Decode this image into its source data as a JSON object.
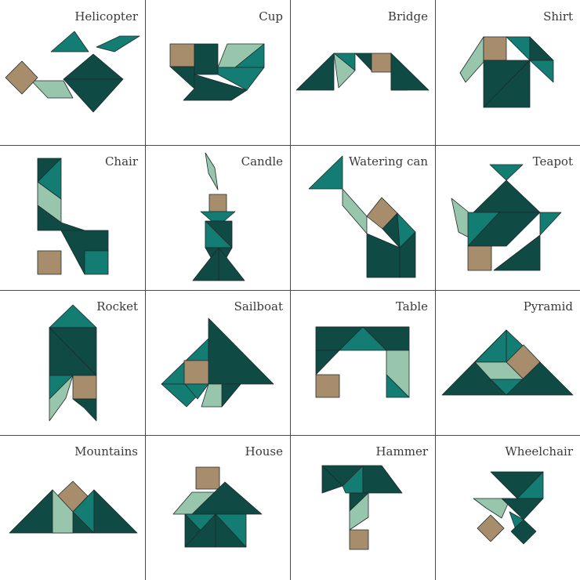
{
  "colors": {
    "dark": "#0f4a44",
    "medium": "#137c73",
    "light": "#97c6ac",
    "tan": "#a78d6c",
    "grid": "#4a4a4a"
  },
  "figures": [
    {
      "label": "Helicopter"
    },
    {
      "label": "Cup"
    },
    {
      "label": "Bridge"
    },
    {
      "label": "Shirt"
    },
    {
      "label": "Chair"
    },
    {
      "label": "Candle"
    },
    {
      "label": "Watering can"
    },
    {
      "label": "Teapot"
    },
    {
      "label": "Rocket"
    },
    {
      "label": "Sailboat"
    },
    {
      "label": "Table"
    },
    {
      "label": "Pyramid"
    },
    {
      "label": "Mountains"
    },
    {
      "label": "House"
    },
    {
      "label": "Hammer"
    },
    {
      "label": "Wheelchair"
    }
  ]
}
